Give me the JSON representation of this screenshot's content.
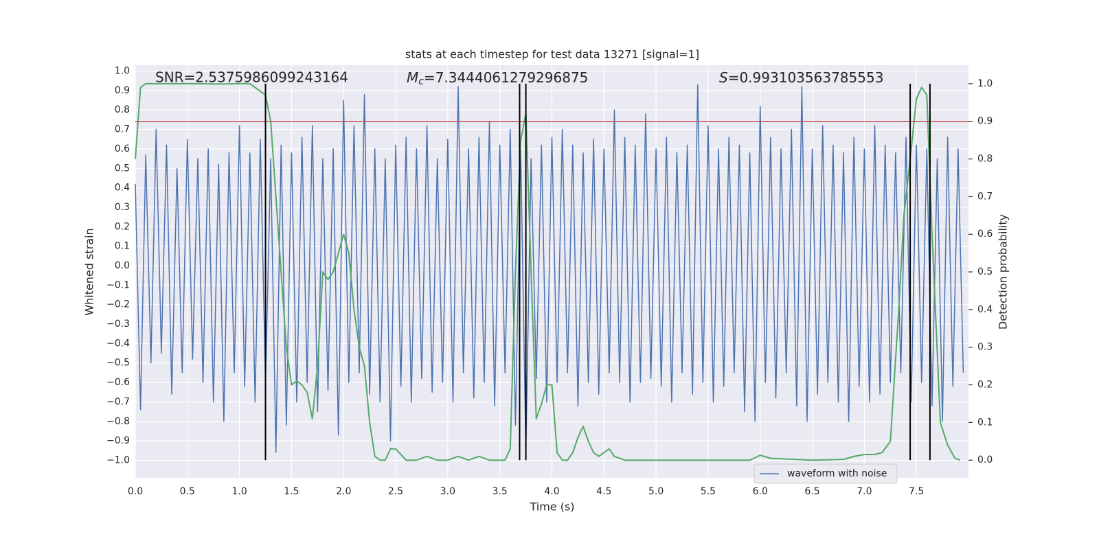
{
  "chart_data": {
    "type": "line",
    "title": "stats at each timestep for test data 13271 [signal=1]",
    "xlabel": "Time (s)",
    "ylabel": "Whitened strain",
    "y2label": "Detection probability",
    "annotations": [
      {
        "text": "SNR=2.5375986099243164"
      },
      {
        "italic": "M",
        "sub": "c",
        "text": "=7.3444061279296875"
      },
      {
        "italic": "S",
        "text": "=0.993103563785553"
      }
    ],
    "xlim": [
      0,
      8
    ],
    "xticks": [
      {
        "value": 0,
        "label": "0.0"
      },
      {
        "value": 0.5,
        "label": "0.5"
      },
      {
        "value": 1,
        "label": "1.0"
      },
      {
        "value": 1.5,
        "label": "1.5"
      },
      {
        "value": 2,
        "label": "2.0"
      },
      {
        "value": 2.5,
        "label": "2.5"
      },
      {
        "value": 3,
        "label": "3.0"
      },
      {
        "value": 3.5,
        "label": "3.5"
      },
      {
        "value": 4,
        "label": "4.0"
      },
      {
        "value": 4.5,
        "label": "4.5"
      },
      {
        "value": 5,
        "label": "5.0"
      },
      {
        "value": 5.5,
        "label": "5.5"
      },
      {
        "value": 6,
        "label": "6.0"
      },
      {
        "value": 6.5,
        "label": "6.5"
      },
      {
        "value": 7,
        "label": "7.0"
      },
      {
        "value": 7.5,
        "label": "7.5"
      }
    ],
    "ylim": [
      -1.09,
      1.03
    ],
    "yticks": [
      {
        "value": -1,
        "label": "−1.0"
      },
      {
        "value": -0.9,
        "label": "−0.9"
      },
      {
        "value": -0.8,
        "label": "−0.8"
      },
      {
        "value": -0.7,
        "label": "−0.7"
      },
      {
        "value": -0.6,
        "label": "−0.6"
      },
      {
        "value": -0.5,
        "label": "−0.5"
      },
      {
        "value": -0.4,
        "label": "−0.4"
      },
      {
        "value": -0.3,
        "label": "−0.3"
      },
      {
        "value": -0.2,
        "label": "−0.2"
      },
      {
        "value": -0.1,
        "label": "−0.1"
      },
      {
        "value": 0,
        "label": "0.0"
      },
      {
        "value": 0.1,
        "label": "0.1"
      },
      {
        "value": 0.2,
        "label": "0.2"
      },
      {
        "value": 0.3,
        "label": "0.3"
      },
      {
        "value": 0.4,
        "label": "0.4"
      },
      {
        "value": 0.5,
        "label": "0.5"
      },
      {
        "value": 0.6,
        "label": "0.6"
      },
      {
        "value": 0.7,
        "label": "0.7"
      },
      {
        "value": 0.8,
        "label": "0.8"
      },
      {
        "value": 0.9,
        "label": "0.9"
      },
      {
        "value": 1,
        "label": "1.0"
      }
    ],
    "y2lim": [
      -0.047,
      1.049
    ],
    "y2ticks": [
      {
        "value": 0,
        "label": "0.0"
      },
      {
        "value": 0.1,
        "label": "0.1"
      },
      {
        "value": 0.2,
        "label": "0.2"
      },
      {
        "value": 0.3,
        "label": "0.3"
      },
      {
        "value": 0.4,
        "label": "0.4"
      },
      {
        "value": 0.5,
        "label": "0.5"
      },
      {
        "value": 0.6,
        "label": "0.6"
      },
      {
        "value": 0.7,
        "label": "0.7"
      },
      {
        "value": 0.8,
        "label": "0.8"
      },
      {
        "value": 0.9,
        "label": "0.9"
      },
      {
        "value": 1,
        "label": "1.0"
      }
    ],
    "grid": true,
    "legend": "lower right",
    "series": [
      {
        "name": "waveform with noise",
        "color": "#4c72b0",
        "x": [
          0,
          0.05,
          0.1,
          0.15,
          0.2,
          0.25,
          0.3,
          0.35,
          0.4,
          0.45,
          0.5,
          0.55,
          0.6,
          0.65,
          0.7,
          0.75,
          0.8,
          0.85,
          0.9,
          0.95,
          1,
          1.05,
          1.1,
          1.15,
          1.2,
          1.25,
          1.3,
          1.35,
          1.4,
          1.45,
          1.5,
          1.55,
          1.6,
          1.65,
          1.7,
          1.75,
          1.8,
          1.85,
          1.9,
          1.95,
          2,
          2.05,
          2.1,
          2.15,
          2.2,
          2.25,
          2.3,
          2.35,
          2.4,
          2.45,
          2.5,
          2.55,
          2.6,
          2.65,
          2.7,
          2.75,
          2.8,
          2.85,
          2.9,
          2.95,
          3,
          3.05,
          3.1,
          3.15,
          3.2,
          3.25,
          3.3,
          3.35,
          3.4,
          3.45,
          3.5,
          3.55,
          3.6,
          3.65,
          3.7,
          3.75,
          3.8,
          3.85,
          3.9,
          3.95,
          4,
          4.05,
          4.1,
          4.15,
          4.2,
          4.25,
          4.3,
          4.35,
          4.4,
          4.45,
          4.5,
          4.55,
          4.6,
          4.65,
          4.7,
          4.75,
          4.8,
          4.85,
          4.9,
          4.95,
          5,
          5.05,
          5.1,
          5.15,
          5.2,
          5.25,
          5.3,
          5.35,
          5.4,
          5.45,
          5.5,
          5.55,
          5.6,
          5.65,
          5.7,
          5.75,
          5.8,
          5.85,
          5.9,
          5.95,
          6,
          6.05,
          6.1,
          6.15,
          6.2,
          6.25,
          6.3,
          6.35,
          6.4,
          6.45,
          6.5,
          6.55,
          6.6,
          6.65,
          6.7,
          6.75,
          6.8,
          6.85,
          6.9,
          6.95,
          7,
          7.05,
          7.1,
          7.15,
          7.2,
          7.25,
          7.3,
          7.35,
          7.4,
          7.45,
          7.5,
          7.55,
          7.6,
          7.65,
          7.7,
          7.75,
          7.8,
          7.85,
          7.9,
          7.95
        ],
        "values": [
          0.42,
          -0.74,
          0.57,
          -0.5,
          0.7,
          -0.45,
          0.62,
          -0.66,
          0.5,
          -0.55,
          0.65,
          -0.48,
          0.55,
          -0.6,
          0.6,
          -0.7,
          0.52,
          -0.8,
          0.58,
          -0.55,
          0.72,
          -0.62,
          0.58,
          -0.7,
          0.65,
          -0.6,
          0.55,
          -0.96,
          0.62,
          -0.82,
          0.58,
          -0.7,
          0.66,
          -0.6,
          0.72,
          -0.75,
          0.55,
          -0.64,
          0.6,
          -0.87,
          0.85,
          -0.6,
          0.72,
          -0.55,
          0.88,
          -0.66,
          0.6,
          -0.7,
          0.55,
          -0.9,
          0.62,
          -0.62,
          0.66,
          -0.7,
          0.6,
          -0.58,
          0.72,
          -0.65,
          0.55,
          -0.6,
          0.65,
          -0.7,
          0.92,
          -0.55,
          0.6,
          -0.68,
          0.66,
          -0.6,
          0.74,
          -0.72,
          0.62,
          -0.55,
          0.7,
          -0.82,
          0.6,
          -0.95,
          0.55,
          -0.58,
          0.62,
          -0.7,
          0.66,
          -0.6,
          0.7,
          -0.55,
          0.62,
          -0.72,
          0.58,
          -0.6,
          0.65,
          -0.66,
          0.6,
          -0.55,
          0.8,
          -0.6,
          0.66,
          -0.7,
          0.62,
          -0.6,
          0.78,
          -0.58,
          0.6,
          -0.62,
          0.66,
          -0.7,
          0.58,
          -0.55,
          0.62,
          -0.66,
          0.93,
          -0.6,
          0.72,
          -0.7,
          0.6,
          -0.62,
          0.66,
          -0.55,
          0.62,
          -0.75,
          0.58,
          -0.8,
          0.82,
          -0.6,
          0.66,
          -0.68,
          0.6,
          -0.55,
          0.7,
          -0.72,
          0.92,
          -0.8,
          0.6,
          -0.66,
          0.72,
          -0.6,
          0.62,
          -0.7,
          0.58,
          -0.8,
          0.66,
          -0.62,
          0.6,
          -0.7,
          0.72,
          -0.66,
          0.62,
          -0.6,
          0.58,
          -0.55,
          0.66,
          -0.7,
          0.62,
          -0.6,
          0.6,
          -0.72,
          0.55,
          -0.8,
          0.66,
          -0.62,
          0.6,
          -0.55
        ]
      },
      {
        "color": "#55a868",
        "axis": "y2",
        "x": [
          0,
          0.05,
          0.1,
          0.2,
          0.4,
          0.6,
          0.8,
          1,
          1.1,
          1.2,
          1.25,
          1.3,
          1.35,
          1.4,
          1.45,
          1.5,
          1.55,
          1.6,
          1.65,
          1.7,
          1.75,
          1.8,
          1.85,
          1.9,
          1.95,
          2,
          2.05,
          2.1,
          2.15,
          2.2,
          2.25,
          2.3,
          2.35,
          2.4,
          2.45,
          2.5,
          2.6,
          2.7,
          2.8,
          2.9,
          3,
          3.1,
          3.2,
          3.3,
          3.4,
          3.5,
          3.55,
          3.6,
          3.65,
          3.7,
          3.75,
          3.8,
          3.85,
          3.9,
          3.95,
          4,
          4.05,
          4.1,
          4.15,
          4.2,
          4.25,
          4.3,
          4.35,
          4.4,
          4.45,
          4.5,
          4.55,
          4.6,
          4.7,
          5,
          5.5,
          5.9,
          6,
          6.1,
          6.5,
          6.8,
          6.9,
          7,
          7.1,
          7.17,
          7.25,
          7.33,
          7.38,
          7.44,
          7.5,
          7.55,
          7.6,
          7.65,
          7.73,
          7.8,
          7.87,
          7.92
        ],
        "values": [
          0.8,
          0.99,
          1,
          1,
          1,
          1,
          0.999,
          1,
          1,
          0.98,
          0.97,
          0.9,
          0.7,
          0.5,
          0.3,
          0.2,
          0.21,
          0.2,
          0.18,
          0.11,
          0.25,
          0.5,
          0.48,
          0.5,
          0.55,
          0.6,
          0.55,
          0.4,
          0.3,
          0.25,
          0.1,
          0.01,
          0,
          0,
          0.03,
          0.03,
          0,
          0,
          0.01,
          0,
          0,
          0.01,
          0,
          0.01,
          0,
          0,
          0,
          0.03,
          0.5,
          0.85,
          0.92,
          0.5,
          0.11,
          0.15,
          0.2,
          0.2,
          0.02,
          0,
          0,
          0.02,
          0.06,
          0.09,
          0.05,
          0.02,
          0.01,
          0.02,
          0.03,
          0.01,
          0,
          0,
          0,
          0,
          0.013,
          0.005,
          0,
          0.002,
          0.01,
          0.015,
          0.015,
          0.02,
          0.05,
          0.4,
          0.65,
          0.8,
          0.96,
          0.99,
          0.97,
          0.6,
          0.1,
          0.04,
          0.005,
          0
        ]
      }
    ],
    "hline": {
      "y2": 0.9,
      "color": "#c44e52"
    },
    "vlines": {
      "x": [
        1.25,
        3.69,
        3.75,
        7.44,
        7.63
      ],
      "y2range": [
        0,
        1
      ],
      "color": "#000000"
    }
  }
}
